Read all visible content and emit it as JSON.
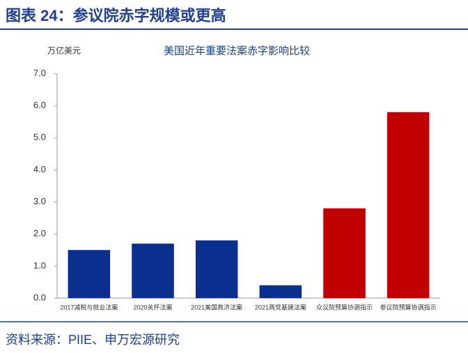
{
  "header": {
    "title": "图表 24：参议院赤字规模或更高"
  },
  "source": "资料来源：PIIE、申万宏源研究",
  "chart_data": {
    "type": "bar",
    "title": "美国近年重要法案赤字影响比较",
    "y_label": "万亿美元",
    "categories": [
      "2017减税与就业法案",
      "2020关怀法案",
      "2021美国救济法案",
      "2021两党基建法案",
      "众议院预算协调指示",
      "参议院预算协调指示"
    ],
    "values": [
      1.5,
      1.7,
      1.8,
      0.4,
      2.8,
      5.8
    ],
    "colors": [
      "#0b2f8e",
      "#0b2f8e",
      "#0b2f8e",
      "#0b2f8e",
      "#c00000",
      "#c00000"
    ],
    "ylim": [
      0,
      7
    ],
    "yticks": [
      {
        "value": 0,
        "label": "0.0"
      },
      {
        "value": 1,
        "label": "1.0"
      },
      {
        "value": 2,
        "label": "2.0"
      },
      {
        "value": 3,
        "label": "3.0"
      },
      {
        "value": 4,
        "label": "4.0"
      },
      {
        "value": 5,
        "label": "5.0"
      },
      {
        "value": 6,
        "label": "6.0"
      },
      {
        "value": 7,
        "label": "7.0"
      }
    ]
  }
}
